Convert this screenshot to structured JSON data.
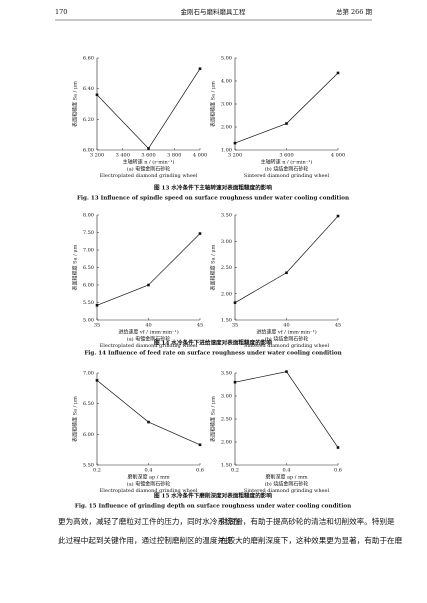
{
  "header": {
    "page": "170",
    "journal": "金刚石与磨料磨具工程",
    "issue": "总第 266 期"
  },
  "figures": [
    {
      "caption": "图 13   水冷条件下主轴转速对表面粗糙度的影响",
      "caption_en": "Fig. 13   Influence of spindle speed on surface roughness under water cooling condition",
      "charts": [
        {
          "type": "line",
          "x_label": "主轴转速 n / (r·min⁻¹)",
          "y_label": "表面粗糙度 Sa / μm",
          "subtitle": "(a) 电镀金刚石砂轮",
          "subtitle_en": "Electroplated diamond grinding wheel",
          "x": [
            3200,
            3600,
            4000
          ],
          "values": [
            6.36,
            6.01,
            6.53
          ],
          "xlim": [
            3200,
            4000
          ],
          "xticks": [
            {
              "value": 3200,
              "label": "3 200"
            },
            {
              "value": 3400,
              "label": "3 400"
            },
            {
              "value": 3600,
              "label": "3 600"
            },
            {
              "value": 3800,
              "label": "3 800"
            },
            {
              "value": 4000,
              "label": "4 000"
            }
          ],
          "ylim": [
            6,
            6.6
          ],
          "yticks": [
            {
              "value": 6,
              "label": "6.00"
            },
            {
              "value": 6.2,
              "label": "6.20"
            },
            {
              "value": 6.4,
              "label": "6.40"
            },
            {
              "value": 6.6,
              "label": "6.60"
            }
          ]
        },
        {
          "type": "line",
          "x_label": "主轴转速 n / (r·min⁻¹)",
          "y_label": "表面粗糙度 Sa / μm",
          "subtitle": "(b) 烧结金刚石砂轮",
          "subtitle_en": "Sintered diamond grinding wheel",
          "x": [
            3200,
            3600,
            4000
          ],
          "values": [
            1.3,
            2.15,
            4.35
          ],
          "xlim": [
            3200,
            4000
          ],
          "xticks": [
            {
              "value": 3200,
              "label": "3 200"
            },
            {
              "value": 3600,
              "label": "3 600"
            },
            {
              "value": 4000,
              "label": "4 000"
            }
          ],
          "ylim": [
            1,
            5
          ],
          "yticks": [
            {
              "value": 1,
              "label": "1.00"
            },
            {
              "value": 2,
              "label": "2.00"
            },
            {
              "value": 3,
              "label": "3.00"
            },
            {
              "value": 4,
              "label": "4.00"
            },
            {
              "value": 5,
              "label": "5.00"
            }
          ]
        }
      ]
    },
    {
      "caption": "图 14   水冷条件下进给速度对表面粗糙度的影响",
      "caption_en": "Fig. 14   Influence of feed rate on surface roughness under water cooling condition",
      "charts": [
        {
          "type": "line",
          "x_label": "进给速度 vf / (mm·min⁻¹)",
          "y_label": "表面粗糙度 Sa / μm",
          "subtitle": "(a) 电镀金刚石砂轮",
          "subtitle_en": "Electroplated diamond grinding wheel",
          "x": [
            35,
            40,
            45
          ],
          "values": [
            5.42,
            6.0,
            7.47
          ],
          "xlim": [
            35,
            45
          ],
          "xticks": [
            35,
            40,
            45
          ],
          "ylim": [
            5,
            8
          ],
          "yticks": [
            {
              "value": 5,
              "label": "5.00"
            },
            {
              "value": 5.5,
              "label": "5.50"
            },
            {
              "value": 6,
              "label": "6.00"
            },
            {
              "value": 6.5,
              "label": "6.50"
            },
            {
              "value": 7,
              "label": "7.00"
            },
            {
              "value": 7.5,
              "label": "7.50"
            },
            {
              "value": 8,
              "label": "8.00"
            }
          ]
        },
        {
          "type": "line",
          "x_label": "进给速度 vf / (mm·min⁻¹)",
          "y_label": "表面粗糙度 Sa / μm",
          "subtitle": "(b) 烧结金刚石砂轮",
          "subtitle_en": "Sintered diamond grinding wheel",
          "x": [
            35,
            40,
            45
          ],
          "values": [
            1.83,
            2.4,
            3.48
          ],
          "xlim": [
            35,
            45
          ],
          "xticks": [
            35,
            40,
            45
          ],
          "ylim": [
            1.5,
            3.5
          ],
          "yticks": [
            {
              "value": 1.5,
              "label": "1.50"
            },
            {
              "value": 2,
              "label": "2.00"
            },
            {
              "value": 2.5,
              "label": "2.50"
            },
            {
              "value": 3,
              "label": "3.00"
            },
            {
              "value": 3.5,
              "label": "3.50"
            }
          ]
        }
      ]
    },
    {
      "caption": "图 15   水冷条件下磨削深度对表面粗糙度的影响",
      "caption_en": "Fig. 15   Influence of grinding depth on surface roughness under water cooling condition",
      "charts": [
        {
          "type": "line",
          "x_label": "磨削深度 ap / mm",
          "y_label": "表面粗糙度 Sa / μm",
          "subtitle": "(a) 电镀金刚石砂轮",
          "subtitle_en": "Electroplated diamond grinding wheel",
          "x": [
            0.2,
            0.4,
            0.6
          ],
          "values": [
            6.88,
            6.2,
            5.83
          ],
          "xlim": [
            0.2,
            0.6
          ],
          "xticks": [
            0.2,
            0.4,
            0.6
          ],
          "ylim": [
            5.5,
            7
          ],
          "yticks": [
            {
              "value": 5.5,
              "label": "5.50"
            },
            {
              "value": 6,
              "label": "6.00"
            },
            {
              "value": 6.5,
              "label": "6.50"
            },
            {
              "value": 7,
              "label": "7.00"
            }
          ]
        },
        {
          "type": "line",
          "x_label": "磨削深度 ap / mm",
          "y_label": "表面粗糙度 Sa / μm",
          "subtitle": "(b) 烧结金刚石砂轮",
          "subtitle_en": "Sintered diamond grinding wheel",
          "x": [
            0.2,
            0.4,
            0.6
          ],
          "values": [
            3.3,
            3.53,
            1.88
          ],
          "xlim": [
            0.2,
            0.6
          ],
          "xticks": [
            0.2,
            0.4,
            0.6
          ],
          "ylim": [
            1.5,
            3.5
          ],
          "yticks": [
            {
              "value": 1.5,
              "label": "1.50"
            },
            {
              "value": 2,
              "label": "2.00"
            },
            {
              "value": 2.5,
              "label": "2.50"
            },
            {
              "value": 3,
              "label": "3.00"
            },
            {
              "value": 3.5,
              "label": "3.50"
            }
          ]
        }
      ]
    }
  ],
  "body": {
    "left": [
      "更为高效，减轻了磨粒对工件的压力，同时水冷系统在",
      "此过程中起到关键作用，通过控制磨削区的温度并提"
    ],
    "right": [
      "供润滑，有助于提高砂轮的清洁和切削效率。特别是",
      "在较大的磨削深度下，这种效果更为显著，有助于在磨"
    ]
  }
}
